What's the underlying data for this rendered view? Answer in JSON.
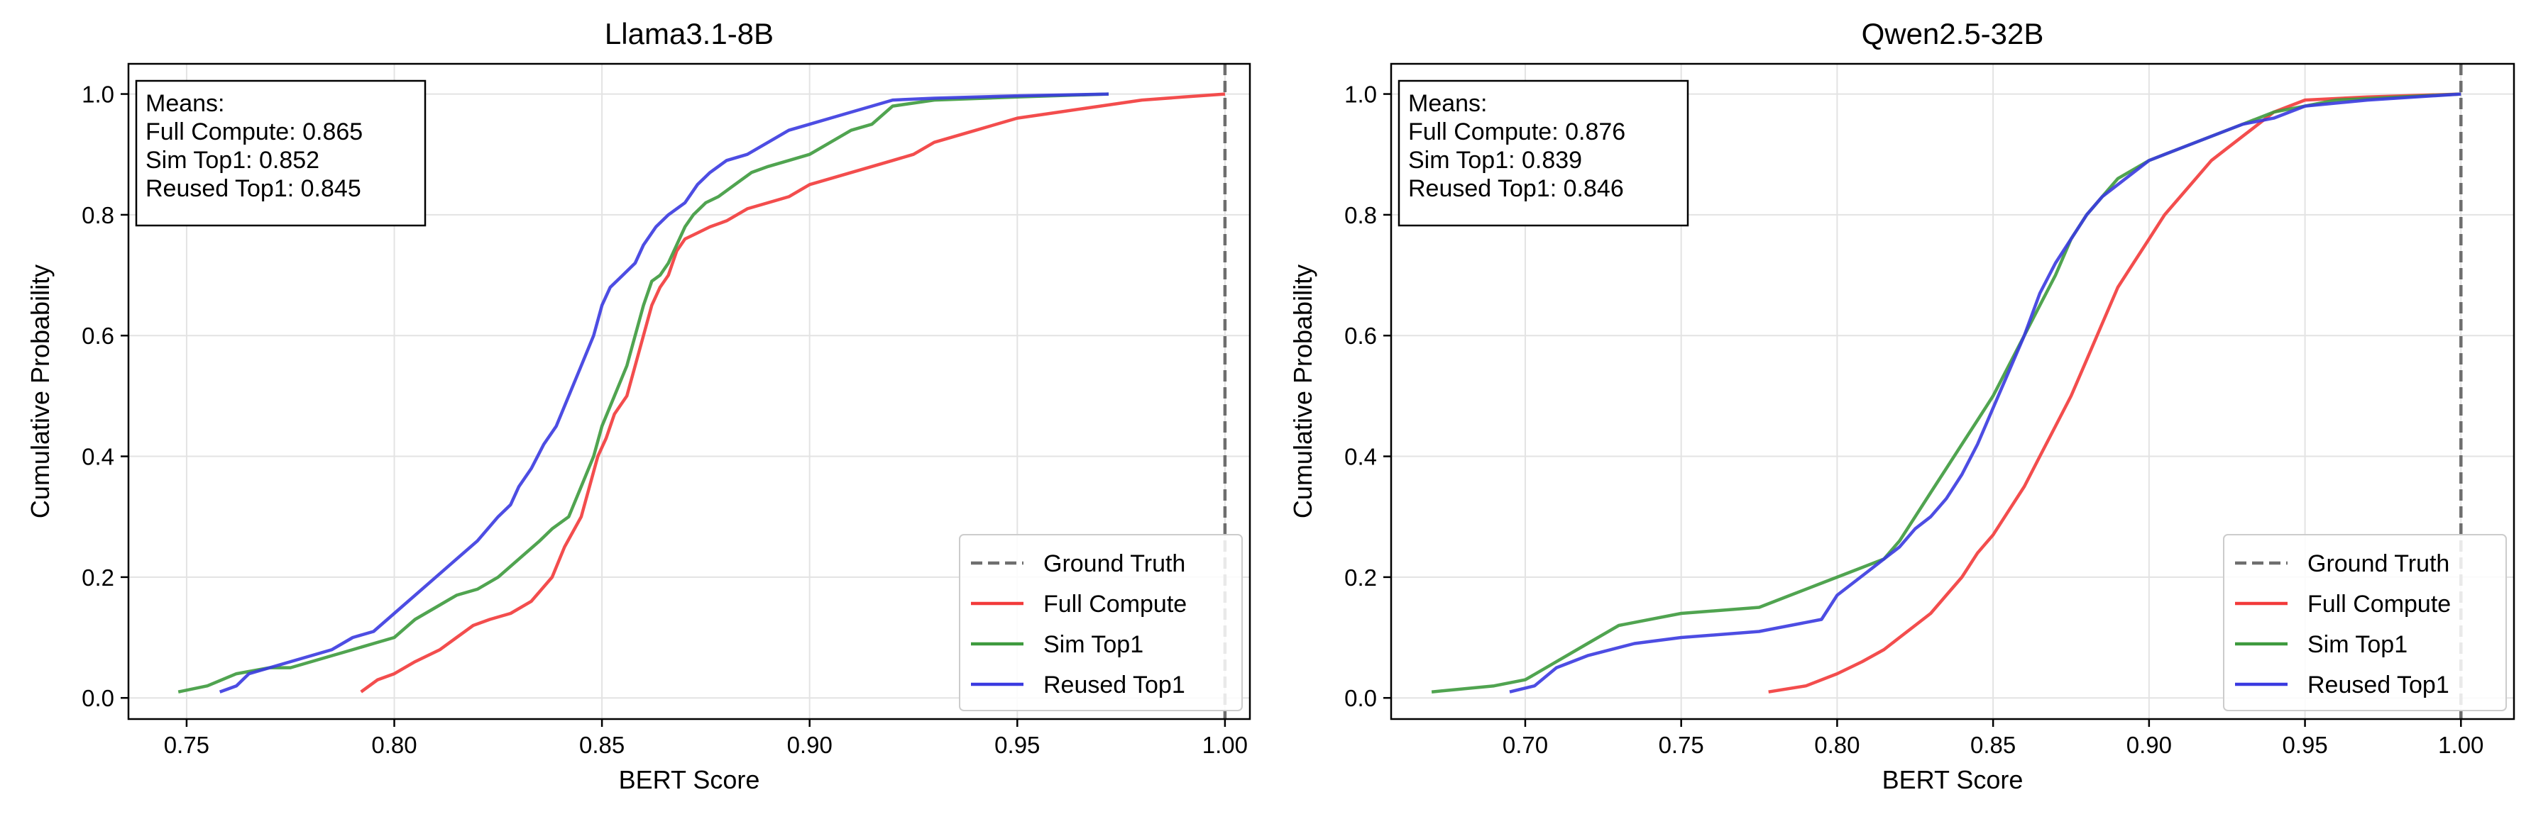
{
  "chart_data": [
    {
      "type": "line",
      "title": "Llama3.1-8B",
      "xlabel": "BERT Score",
      "ylabel": "Cumulative Probability",
      "xlim": [
        0.736,
        1.006
      ],
      "ylim": [
        -0.035,
        1.05
      ],
      "xticks": [
        "0.75",
        "0.80",
        "0.85",
        "0.90",
        "0.95",
        "1.00"
      ],
      "yticks": [
        "0.0",
        "0.2",
        "0.4",
        "0.6",
        "0.8",
        "1.0"
      ],
      "grid": true,
      "legend_position": "lower-right",
      "means_box": {
        "heading": "Means:",
        "lines": [
          "Full Compute: 0.865",
          "Sim Top1: 0.852",
          "Reused Top1: 0.845"
        ]
      },
      "reference_line": {
        "name": "Ground Truth",
        "x": 1.0,
        "color": "#6e6e6e"
      },
      "series": [
        {
          "name": "Full Compute",
          "color": "#f23a3a",
          "x": [
            0.792,
            0.796,
            0.8,
            0.805,
            0.811,
            0.815,
            0.819,
            0.823,
            0.828,
            0.833,
            0.838,
            0.841,
            0.845,
            0.847,
            0.849,
            0.851,
            0.853,
            0.856,
            0.858,
            0.86,
            0.862,
            0.864,
            0.866,
            0.868,
            0.87,
            0.873,
            0.876,
            0.88,
            0.885,
            0.89,
            0.895,
            0.9,
            0.905,
            0.91,
            0.915,
            0.92,
            0.925,
            0.93,
            0.94,
            0.95,
            0.96,
            0.97,
            0.98,
            0.99,
            1.0
          ],
          "y": [
            0.01,
            0.03,
            0.04,
            0.06,
            0.08,
            0.1,
            0.12,
            0.13,
            0.14,
            0.16,
            0.2,
            0.25,
            0.3,
            0.35,
            0.4,
            0.43,
            0.47,
            0.5,
            0.55,
            0.6,
            0.65,
            0.68,
            0.7,
            0.74,
            0.76,
            0.77,
            0.78,
            0.79,
            0.81,
            0.82,
            0.83,
            0.85,
            0.86,
            0.87,
            0.88,
            0.89,
            0.9,
            0.92,
            0.94,
            0.96,
            0.97,
            0.98,
            0.99,
            0.995,
            1.0
          ]
        },
        {
          "name": "Sim Top1",
          "color": "#3d9a3d",
          "x": [
            0.748,
            0.755,
            0.762,
            0.77,
            0.775,
            0.78,
            0.785,
            0.79,
            0.795,
            0.8,
            0.805,
            0.81,
            0.815,
            0.82,
            0.825,
            0.83,
            0.835,
            0.838,
            0.842,
            0.845,
            0.848,
            0.85,
            0.853,
            0.856,
            0.858,
            0.86,
            0.862,
            0.864,
            0.866,
            0.868,
            0.87,
            0.872,
            0.875,
            0.878,
            0.882,
            0.886,
            0.89,
            0.895,
            0.9,
            0.905,
            0.91,
            0.915,
            0.92,
            0.93,
            0.95,
            0.972
          ],
          "y": [
            0.01,
            0.02,
            0.04,
            0.05,
            0.05,
            0.06,
            0.07,
            0.08,
            0.09,
            0.1,
            0.13,
            0.15,
            0.17,
            0.18,
            0.2,
            0.23,
            0.26,
            0.28,
            0.3,
            0.35,
            0.4,
            0.45,
            0.5,
            0.55,
            0.6,
            0.65,
            0.69,
            0.7,
            0.72,
            0.75,
            0.78,
            0.8,
            0.82,
            0.83,
            0.85,
            0.87,
            0.88,
            0.89,
            0.9,
            0.92,
            0.94,
            0.95,
            0.98,
            0.99,
            0.995,
            1.0
          ]
        },
        {
          "name": "Reused Top1",
          "color": "#3a3ae0",
          "x": [
            0.758,
            0.762,
            0.765,
            0.77,
            0.775,
            0.78,
            0.785,
            0.79,
            0.795,
            0.8,
            0.805,
            0.81,
            0.815,
            0.82,
            0.825,
            0.828,
            0.83,
            0.833,
            0.836,
            0.839,
            0.842,
            0.845,
            0.848,
            0.85,
            0.852,
            0.855,
            0.858,
            0.86,
            0.863,
            0.866,
            0.87,
            0.873,
            0.876,
            0.88,
            0.885,
            0.89,
            0.895,
            0.9,
            0.905,
            0.91,
            0.915,
            0.92,
            0.93,
            0.95,
            0.972
          ],
          "y": [
            0.01,
            0.02,
            0.04,
            0.05,
            0.06,
            0.07,
            0.08,
            0.1,
            0.11,
            0.14,
            0.17,
            0.2,
            0.23,
            0.26,
            0.3,
            0.32,
            0.35,
            0.38,
            0.42,
            0.45,
            0.5,
            0.55,
            0.6,
            0.65,
            0.68,
            0.7,
            0.72,
            0.75,
            0.78,
            0.8,
            0.82,
            0.85,
            0.87,
            0.89,
            0.9,
            0.92,
            0.94,
            0.95,
            0.96,
            0.97,
            0.98,
            0.99,
            0.993,
            0.997,
            1.0
          ]
        }
      ]
    },
    {
      "type": "line",
      "title": "Qwen2.5-32B",
      "xlabel": "BERT Score",
      "ylabel": "Cumulative Probability",
      "xlim": [
        0.657,
        1.017
      ],
      "ylim": [
        -0.035,
        1.05
      ],
      "xticks": [
        "0.70",
        "0.75",
        "0.80",
        "0.85",
        "0.90",
        "0.95",
        "1.00"
      ],
      "yticks": [
        "0.0",
        "0.2",
        "0.4",
        "0.6",
        "0.8",
        "1.0"
      ],
      "grid": true,
      "legend_position": "lower-right",
      "means_box": {
        "heading": "Means:",
        "lines": [
          "Full Compute: 0.876",
          "Sim Top1: 0.839",
          "Reused Top1: 0.846"
        ]
      },
      "reference_line": {
        "name": "Ground Truth",
        "x": 1.0,
        "color": "#6e6e6e"
      },
      "series": [
        {
          "name": "Full Compute",
          "color": "#f23a3a",
          "x": [
            0.778,
            0.79,
            0.8,
            0.808,
            0.815,
            0.82,
            0.825,
            0.83,
            0.835,
            0.84,
            0.845,
            0.85,
            0.855,
            0.86,
            0.865,
            0.87,
            0.875,
            0.88,
            0.885,
            0.89,
            0.895,
            0.9,
            0.905,
            0.91,
            0.915,
            0.92,
            0.925,
            0.93,
            0.935,
            0.94,
            0.95,
            0.97,
            1.0
          ],
          "y": [
            0.01,
            0.02,
            0.04,
            0.06,
            0.08,
            0.1,
            0.12,
            0.14,
            0.17,
            0.2,
            0.24,
            0.27,
            0.31,
            0.35,
            0.4,
            0.45,
            0.5,
            0.56,
            0.62,
            0.68,
            0.72,
            0.76,
            0.8,
            0.83,
            0.86,
            0.89,
            0.91,
            0.93,
            0.95,
            0.97,
            0.99,
            0.995,
            1.0
          ]
        },
        {
          "name": "Sim Top1",
          "color": "#3d9a3d",
          "x": [
            0.67,
            0.69,
            0.7,
            0.71,
            0.72,
            0.73,
            0.75,
            0.775,
            0.785,
            0.795,
            0.805,
            0.815,
            0.82,
            0.825,
            0.83,
            0.835,
            0.84,
            0.845,
            0.85,
            0.855,
            0.86,
            0.865,
            0.87,
            0.875,
            0.88,
            0.885,
            0.89,
            0.9,
            0.91,
            0.92,
            0.93,
            0.94,
            0.96,
            1.0
          ],
          "y": [
            0.01,
            0.02,
            0.03,
            0.06,
            0.09,
            0.12,
            0.14,
            0.15,
            0.17,
            0.19,
            0.21,
            0.23,
            0.26,
            0.3,
            0.34,
            0.38,
            0.42,
            0.46,
            0.5,
            0.55,
            0.6,
            0.65,
            0.7,
            0.76,
            0.8,
            0.83,
            0.86,
            0.89,
            0.91,
            0.93,
            0.95,
            0.97,
            0.99,
            1.0
          ]
        },
        {
          "name": "Reused Top1",
          "color": "#3a3ae0",
          "x": [
            0.695,
            0.703,
            0.71,
            0.72,
            0.735,
            0.75,
            0.775,
            0.785,
            0.795,
            0.8,
            0.805,
            0.81,
            0.815,
            0.82,
            0.825,
            0.83,
            0.835,
            0.84,
            0.845,
            0.85,
            0.855,
            0.86,
            0.865,
            0.87,
            0.875,
            0.88,
            0.885,
            0.89,
            0.9,
            0.91,
            0.92,
            0.93,
            0.94,
            0.95,
            0.97,
            1.0
          ],
          "y": [
            0.01,
            0.02,
            0.05,
            0.07,
            0.09,
            0.1,
            0.11,
            0.12,
            0.13,
            0.17,
            0.19,
            0.21,
            0.23,
            0.25,
            0.28,
            0.3,
            0.33,
            0.37,
            0.42,
            0.48,
            0.54,
            0.6,
            0.67,
            0.72,
            0.76,
            0.8,
            0.83,
            0.85,
            0.89,
            0.91,
            0.93,
            0.95,
            0.96,
            0.98,
            0.99,
            1.0
          ]
        }
      ]
    }
  ]
}
